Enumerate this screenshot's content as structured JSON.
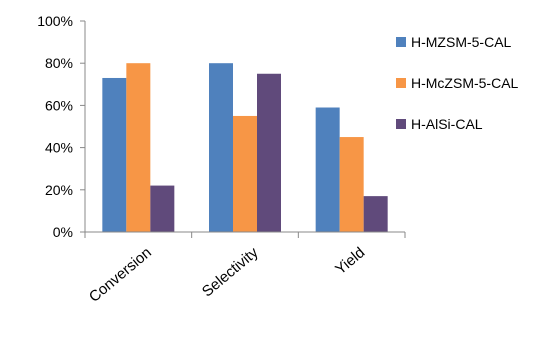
{
  "chart_data": {
    "type": "bar",
    "categories": [
      "Conversion",
      "Selectivity",
      "Yield"
    ],
    "series": [
      {
        "name": "H-MZSM-5-CAL",
        "values": [
          73,
          80,
          59
        ],
        "color": "#4F81BD"
      },
      {
        "name": "H-McZSM-5-CAL",
        "values": [
          80,
          55,
          45
        ],
        "color": "#F79646"
      },
      {
        "name": "H-AlSi-CAL",
        "values": [
          22,
          75,
          17
        ],
        "color": "#604A7B"
      }
    ],
    "yticks": [
      "0%",
      "20%",
      "40%",
      "60%",
      "80%",
      "100%"
    ],
    "ylim": [
      0,
      100
    ],
    "grid": false,
    "legend_position": "right",
    "xlabel_rotation": "diagonal"
  }
}
